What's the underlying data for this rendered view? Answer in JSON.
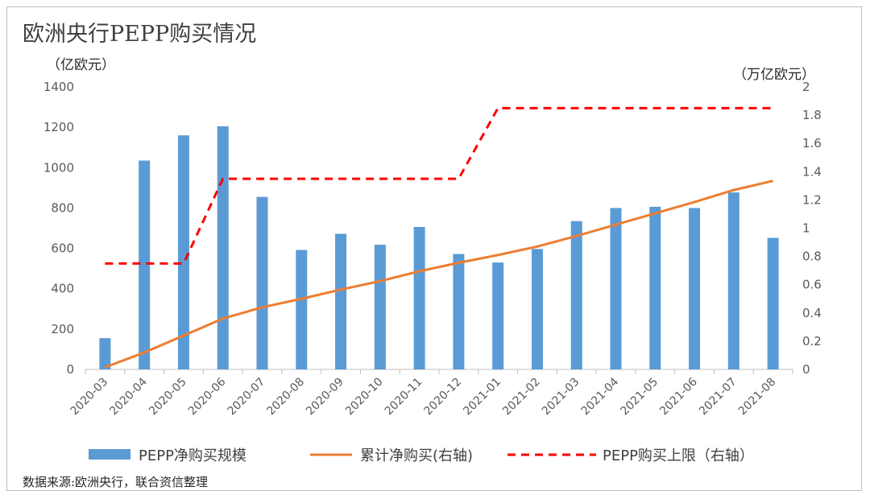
{
  "title": "欧洲央行PEPP购买情况",
  "left_unit": "（亿欧元）",
  "right_unit": "（万亿欧元）",
  "source": "数据来源:欧洲央行，联合资信整理",
  "colors": {
    "bar": "#5b9bd5",
    "cumulative": "#ed7d31",
    "cap": "#ff0000",
    "axis": "#bfbfbf",
    "text": "#404040"
  },
  "chart_data": {
    "type": "bar",
    "categories": [
      "2020-03",
      "2020-04",
      "2020-05",
      "2020-06",
      "2020-07",
      "2020-08",
      "2020-09",
      "2020-10",
      "2020-11",
      "2020-12",
      "2021-01",
      "2021-02",
      "2021-03",
      "2021-04",
      "2021-05",
      "2021-06",
      "2021-07",
      "2021-08"
    ],
    "left_axis": {
      "ylim": [
        0,
        1400
      ],
      "ticks": [
        0,
        200,
        400,
        600,
        800,
        1000,
        1200,
        1400
      ]
    },
    "right_axis": {
      "ylim": [
        0,
        2
      ],
      "ticks": [
        0,
        0.2,
        0.4,
        0.6,
        0.8,
        1,
        1.2,
        1.4,
        1.6,
        1.8,
        2
      ]
    },
    "series": [
      {
        "name": "PEPP净购买规模",
        "kind": "bar",
        "axis": "left",
        "values": [
          155,
          1035,
          1160,
          1205,
          855,
          592,
          672,
          618,
          706,
          572,
          530,
          597,
          735,
          800,
          806,
          800,
          877,
          652
        ]
      },
      {
        "name": "累计净购买(右轴)",
        "kind": "line",
        "axis": "right",
        "values": [
          0.015,
          0.12,
          0.24,
          0.36,
          0.44,
          0.5,
          0.565,
          0.625,
          0.695,
          0.755,
          0.81,
          0.87,
          0.945,
          1.025,
          1.105,
          1.185,
          1.27,
          1.335
        ]
      },
      {
        "name": "PEPP购买上限（右轴）",
        "kind": "dashed-line",
        "axis": "right",
        "values": [
          0.75,
          0.75,
          0.75,
          1.35,
          1.35,
          1.35,
          1.35,
          1.35,
          1.35,
          1.35,
          1.85,
          1.85,
          1.85,
          1.85,
          1.85,
          1.85,
          1.85,
          1.85
        ]
      }
    ],
    "grid": false,
    "legend_position": "bottom"
  }
}
